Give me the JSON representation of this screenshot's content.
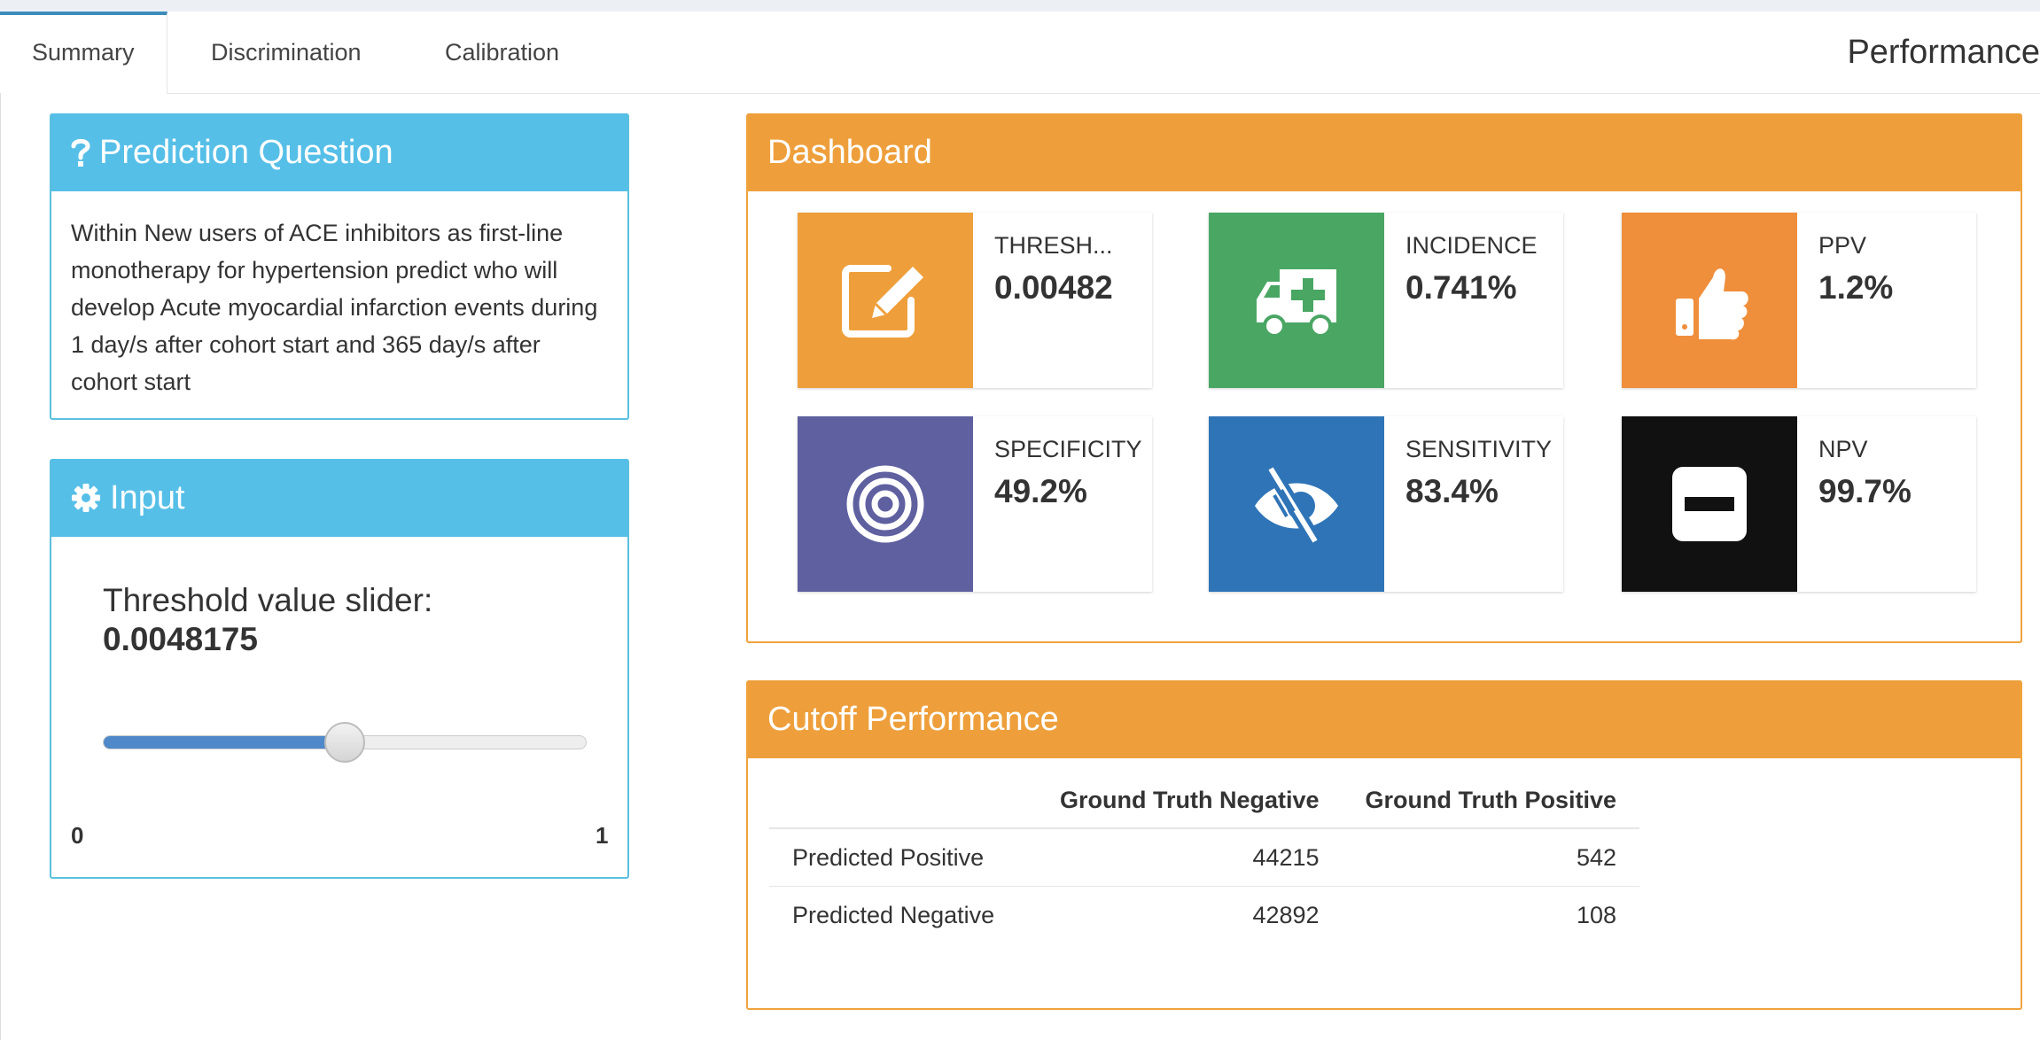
{
  "tabs": [
    {
      "label": "Summary",
      "active": true
    },
    {
      "label": "Discrimination",
      "active": false
    },
    {
      "label": "Calibration",
      "active": false
    }
  ],
  "page_title": "Performance",
  "prediction_question": {
    "title": "Prediction Question",
    "icon": "question-icon",
    "text": "Within New users of ACE inhibitors as first-line monotherapy for hypertension predict who will develop Acute myocardial infarction events during 1 day/s after cohort start and 365 day/s after cohort start"
  },
  "input": {
    "title": "Input",
    "icon": "gear-icon",
    "slider_label": "Threshold value slider:",
    "slider_value": "0.0048175",
    "slider_min": "0",
    "slider_max": "1",
    "slider_fraction": 0.5
  },
  "dashboard": {
    "title": "Dashboard",
    "boxes": [
      {
        "label": "THRESH...",
        "value": "0.00482",
        "icon": "edit-icon",
        "color": "#ee9f3b"
      },
      {
        "label": "INCIDENCE",
        "value": "0.741%",
        "icon": "ambulance-icon",
        "color": "#4aa663"
      },
      {
        "label": "PPV",
        "value": "1.2%",
        "icon": "thumbs-up-icon",
        "color": "#ef8e3b"
      },
      {
        "label": "SPECIFICITY",
        "value": "49.2%",
        "icon": "bullseye-icon",
        "color": "#5f60a0"
      },
      {
        "label": "SENSITIVITY",
        "value": "83.4%",
        "icon": "low-vision-icon",
        "color": "#2f74b7"
      },
      {
        "label": "NPV",
        "value": "99.7%",
        "icon": "minus-square-icon",
        "color": "#111111"
      }
    ]
  },
  "cutoff": {
    "title": "Cutoff Performance",
    "columns": [
      "",
      "Ground Truth Negative",
      "Ground Truth Positive"
    ],
    "rows": [
      {
        "label": "Predicted Positive",
        "neg": "44215",
        "pos": "542"
      },
      {
        "label": "Predicted Negative",
        "neg": "42892",
        "pos": "108"
      }
    ]
  }
}
